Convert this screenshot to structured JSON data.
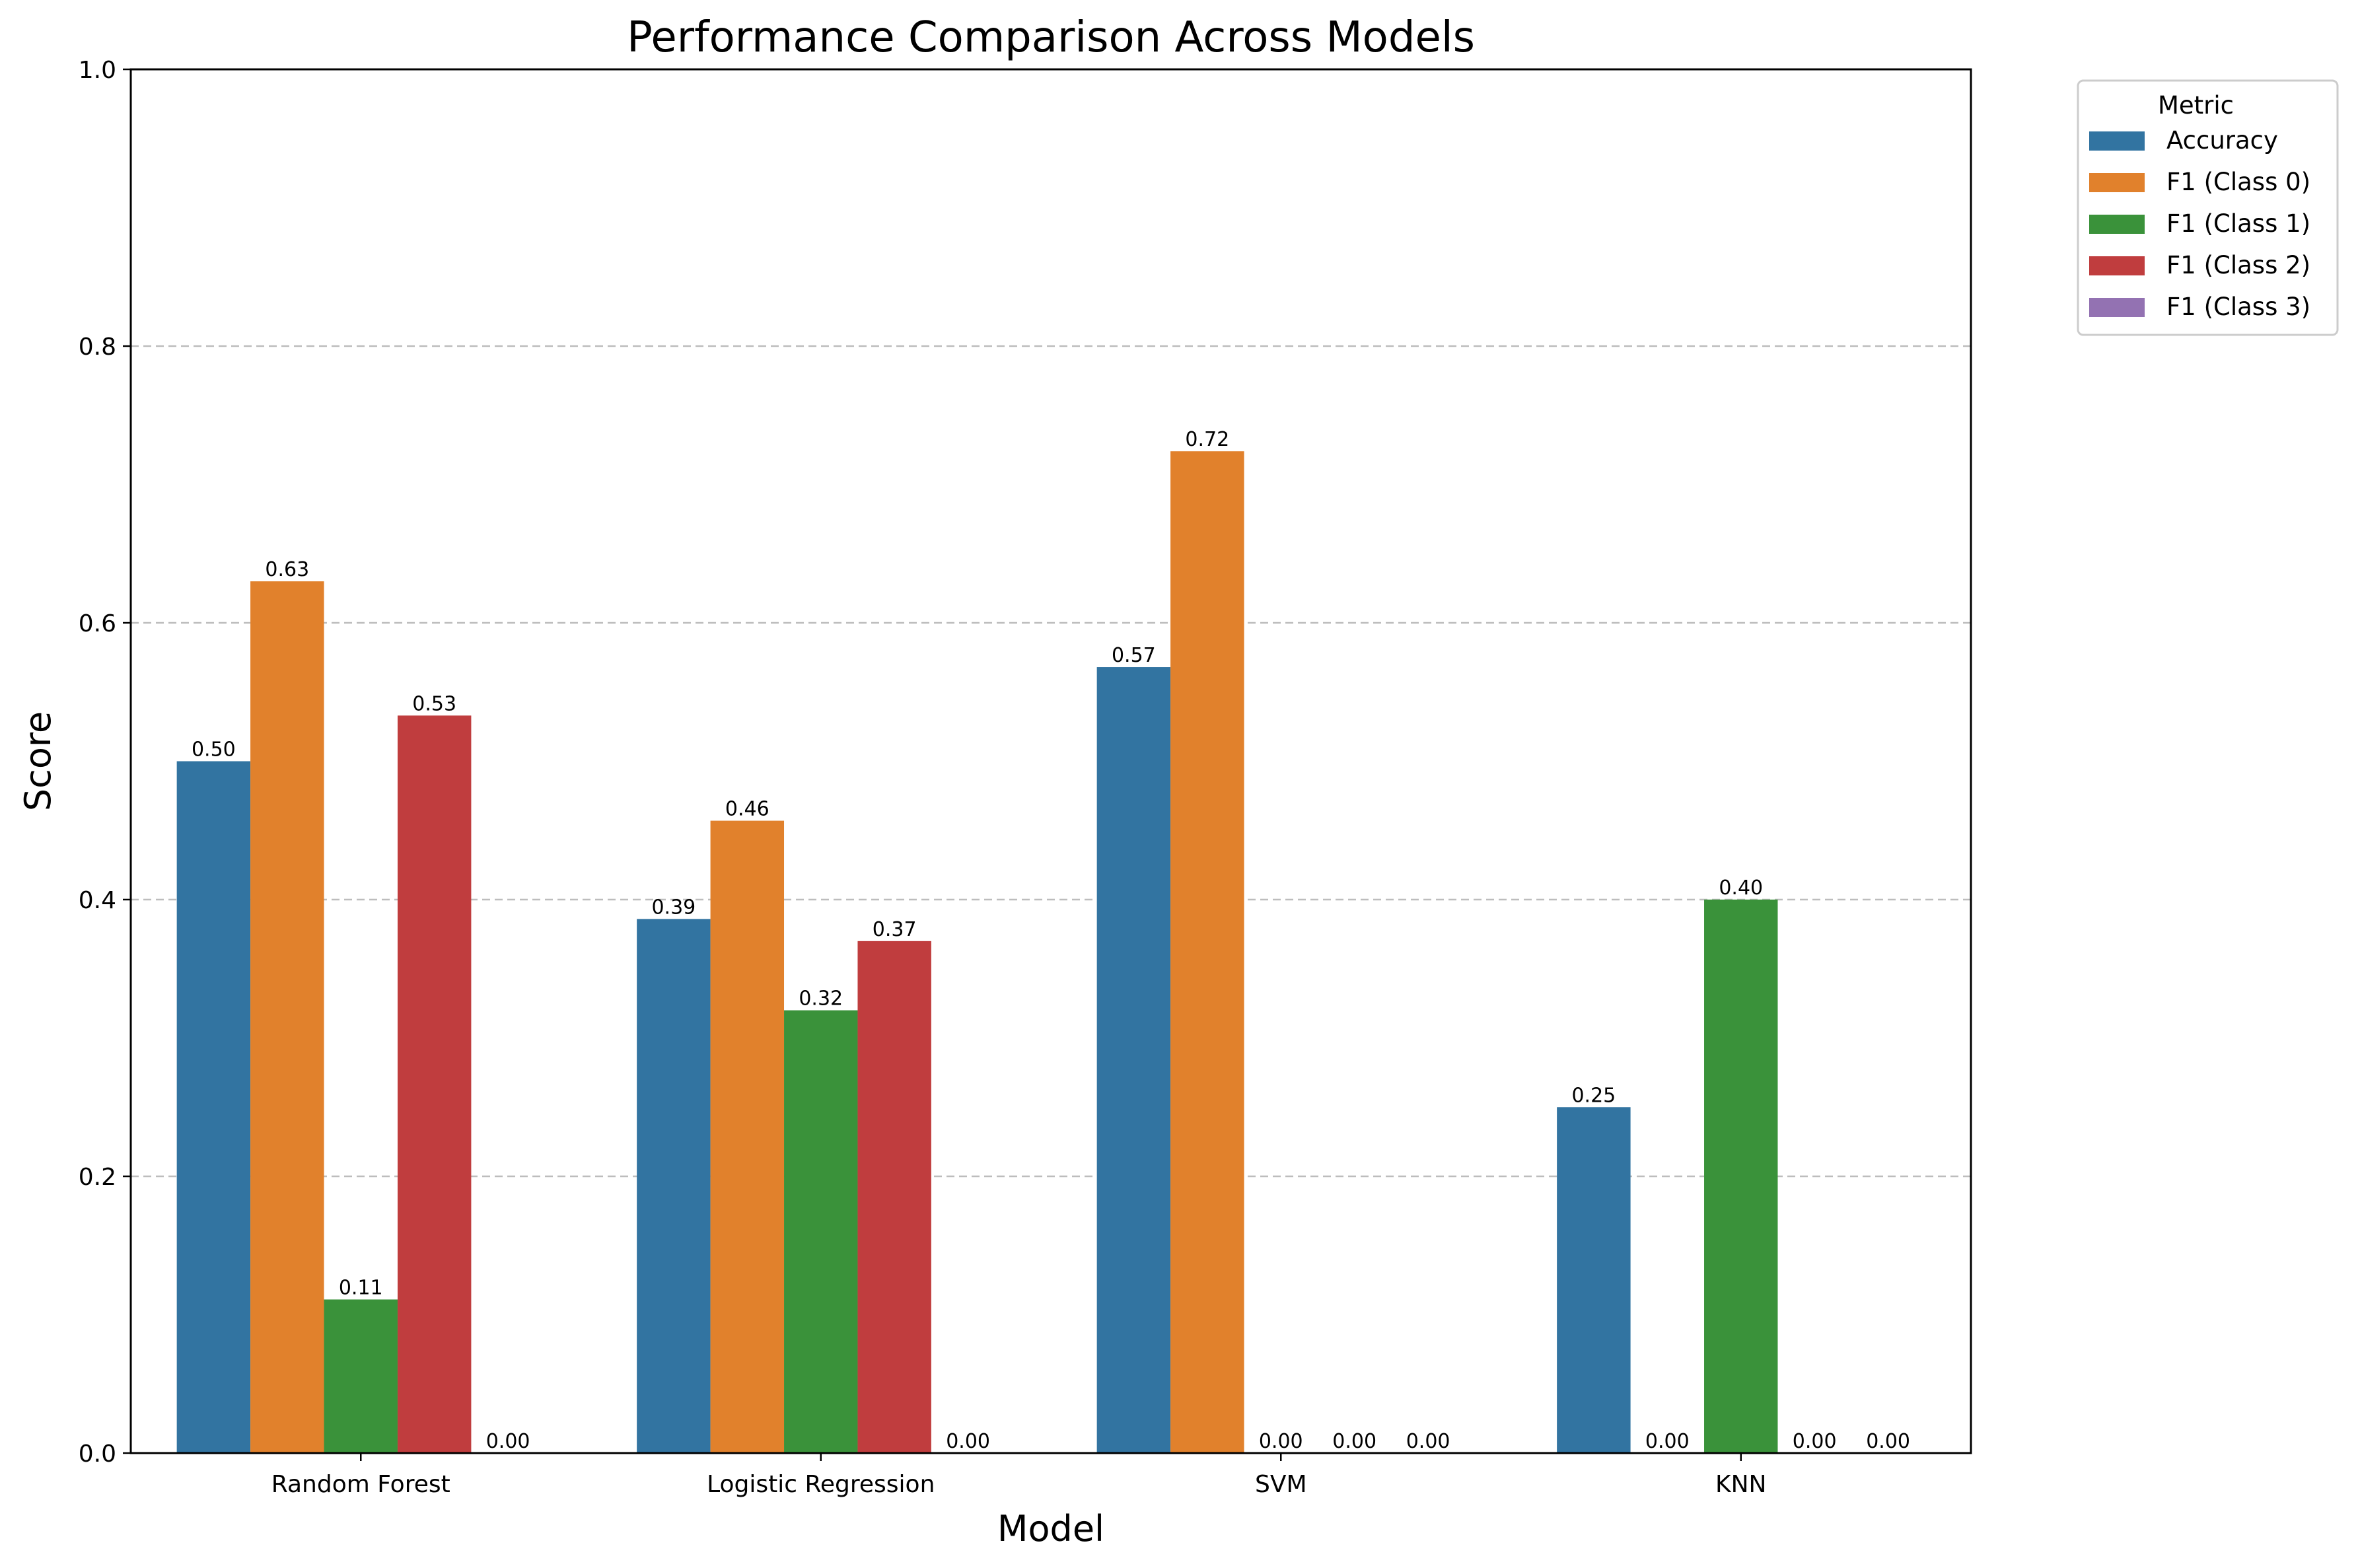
{
  "chart_data": {
    "type": "bar",
    "title": "Performance Comparison Across Models",
    "xlabel": "Model",
    "ylabel": "Score",
    "ylim": [
      0,
      1.0
    ],
    "yticks": [
      "0.0",
      "0.2",
      "0.4",
      "0.6",
      "0.8",
      "1.0"
    ],
    "grid": "y-dashed",
    "legend_title": "Metric",
    "legend_placement": "outside-top-right",
    "categories": [
      "Random Forest",
      "Logistic Regression",
      "SVM",
      "KNN"
    ],
    "series": [
      {
        "name": "Accuracy",
        "color": "#3274a1",
        "values": [
          0.5,
          0.386,
          0.568,
          0.25
        ],
        "labels": [
          "0.50",
          "0.39",
          "0.57",
          "0.25"
        ]
      },
      {
        "name": "F1 (Class 0)",
        "color": "#e1812c",
        "values": [
          0.63,
          0.457,
          0.724,
          0.0
        ],
        "labels": [
          "0.63",
          "0.46",
          "0.72",
          "0.00"
        ]
      },
      {
        "name": "F1 (Class 1)",
        "color": "#3a923a",
        "values": [
          0.111,
          0.32,
          0.0,
          0.4
        ],
        "labels": [
          "0.11",
          "0.32",
          "0.00",
          "0.40"
        ]
      },
      {
        "name": "F1 (Class 2)",
        "color": "#c03d3e",
        "values": [
          0.533,
          0.37,
          0.0,
          0.0
        ],
        "labels": [
          "0.53",
          "0.37",
          "0.00",
          "0.00"
        ]
      },
      {
        "name": "F1 (Class 3)",
        "color": "#9372b2",
        "values": [
          0.0,
          0.0,
          0.0,
          0.0
        ],
        "labels": [
          "0.00",
          "0.00",
          "0.00",
          "0.00"
        ]
      }
    ]
  }
}
